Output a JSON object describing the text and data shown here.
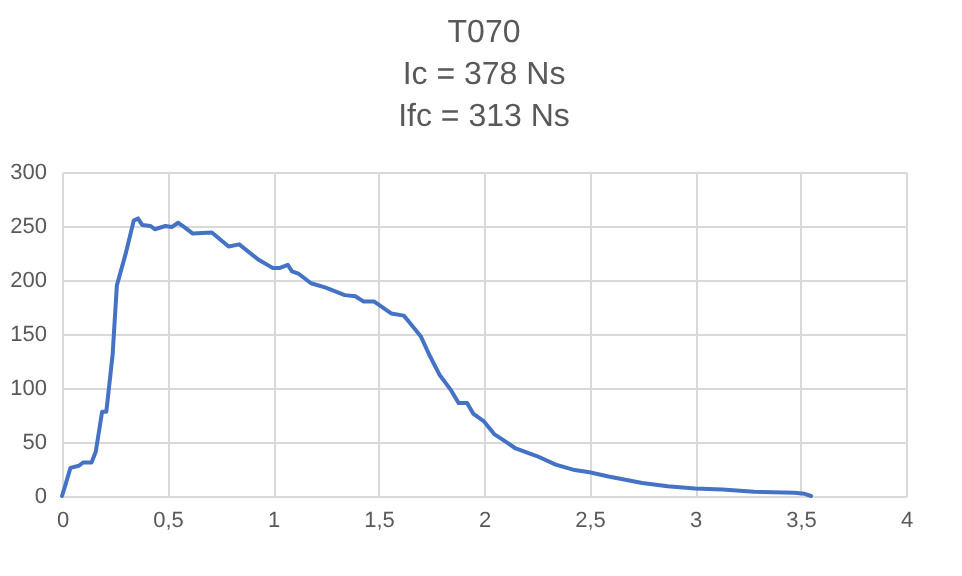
{
  "chart_data": {
    "type": "line",
    "title": "T070\nIc = 378 Ns\nIfc = 313 Ns",
    "x": [
      0,
      0.016,
      0.04,
      0.08,
      0.1,
      0.14,
      0.16,
      0.19,
      0.21,
      0.24,
      0.26,
      0.3,
      0.34,
      0.36,
      0.38,
      0.42,
      0.44,
      0.49,
      0.52,
      0.55,
      0.58,
      0.62,
      0.71,
      0.79,
      0.84,
      0.93,
      1.0,
      1.03,
      1.07,
      1.09,
      1.12,
      1.18,
      1.25,
      1.34,
      1.39,
      1.43,
      1.48,
      1.56,
      1.62,
      1.65,
      1.7,
      1.74,
      1.79,
      1.84,
      1.88,
      1.92,
      1.95,
      2.0,
      2.05,
      2.09,
      2.15,
      2.25,
      2.34,
      2.43,
      2.5,
      2.59,
      2.75,
      2.87,
      3.0,
      3.13,
      3.28,
      3.47,
      3.52,
      3.55
    ],
    "series": [
      {
        "color": "#4472c4",
        "values": [
          0,
          10,
          26,
          28,
          31,
          31,
          41,
          78,
          78,
          131,
          195,
          223,
          255,
          257,
          251,
          250,
          247,
          250,
          249,
          253,
          249,
          243,
          244,
          231,
          233,
          219,
          211,
          211,
          214,
          208,
          206,
          197,
          193,
          186,
          185,
          180,
          180,
          169,
          167,
          160,
          148,
          131,
          112,
          99,
          86,
          86,
          76,
          69,
          57,
          52,
          44,
          37,
          29,
          24,
          22,
          18,
          12,
          9,
          7,
          6,
          4,
          3,
          2,
          0
        ]
      }
    ],
    "xlim": [
      0,
      4
    ],
    "xticks": [
      0,
      {
        "value": 0.5,
        "label": "0,5"
      },
      1,
      {
        "value": 1.5,
        "label": "1,5"
      },
      2,
      {
        "value": 2.5,
        "label": "2,5"
      },
      3,
      {
        "value": 3.5,
        "label": "3,5"
      },
      4
    ],
    "ylim": [
      0,
      300
    ],
    "yticks": [
      0,
      50,
      100,
      150,
      200,
      250,
      300
    ],
    "grid": true,
    "marker": "none",
    "line_style": "solid"
  }
}
